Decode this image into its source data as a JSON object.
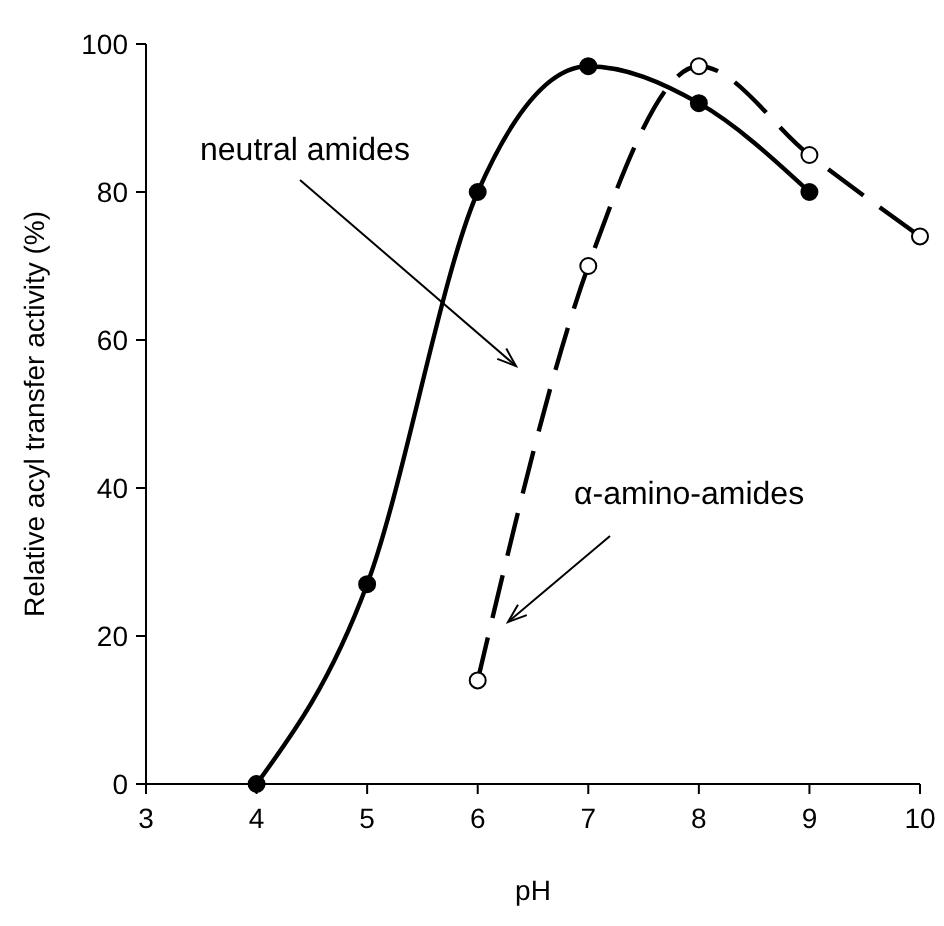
{
  "chart_data": {
    "type": "line",
    "xlabel": "pH",
    "ylabel": "Relative acyl transfer activity (%)",
    "xlim": [
      3,
      10
    ],
    "xticks": [
      3,
      4,
      5,
      6,
      7,
      8,
      9,
      10
    ],
    "ylim": [
      0,
      100
    ],
    "yticks": [
      0,
      20,
      40,
      60,
      80,
      100
    ],
    "marker": "circle",
    "series": [
      {
        "name": "neutral amides",
        "color": "#000000",
        "line_style": "solid",
        "x": [
          4,
          5,
          6,
          7,
          8,
          9
        ],
        "values": [
          0,
          27,
          80,
          97,
          92,
          80
        ]
      },
      {
        "name": "α-amino-amides",
        "color": "#000000",
        "line_style": "dashed",
        "x": [
          6,
          7,
          8,
          9,
          10
        ],
        "values": [
          14,
          70,
          97,
          85,
          74
        ]
      }
    ]
  }
}
